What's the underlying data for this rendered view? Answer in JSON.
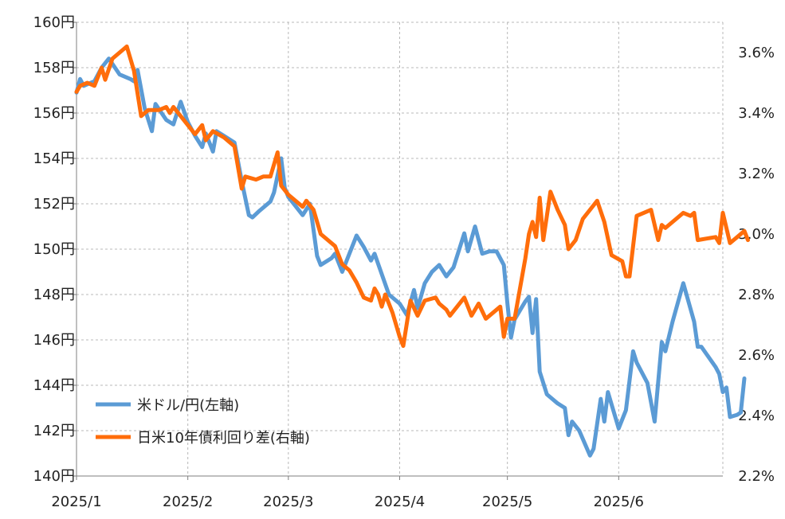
{
  "chart_data": {
    "type": "line",
    "title": "",
    "x_axis": {
      "type": "date",
      "range": [
        "2025-01-01",
        "2025-06-30"
      ],
      "ticks": [
        "2025-01-01",
        "2025-02-01",
        "2025-03-01",
        "2025-04-01",
        "2025-05-01",
        "2025-06-01"
      ],
      "tick_labels": [
        "2025/1",
        "2025/2",
        "2025/3",
        "2025/4",
        "2025/5",
        "2025/6"
      ]
    },
    "y_left": {
      "range": [
        140,
        160
      ],
      "ticks": [
        140,
        142,
        144,
        146,
        148,
        150,
        152,
        154,
        156,
        158,
        160
      ],
      "tick_labels": [
        "140円",
        "142円",
        "144円",
        "146円",
        "148円",
        "150円",
        "152円",
        "154円",
        "156円",
        "158円",
        "160円"
      ]
    },
    "y_right": {
      "range": [
        2.2,
        3.7
      ],
      "ticks": [
        2.2,
        2.4,
        2.6,
        2.8,
        3.0,
        3.2,
        3.4,
        3.6
      ],
      "tick_labels": [
        "2.2%",
        "2.4%",
        "2.6%",
        "2.8%",
        "3.0%",
        "3.2%",
        "3.4%",
        "3.6%"
      ]
    },
    "grid": {
      "vertical": true,
      "horizontal": true,
      "style": "dashed"
    },
    "legend": {
      "position": "bottom-left",
      "entries": [
        {
          "label": "米ドル/円(左軸)",
          "color": "#5b9bd5"
        },
        {
          "label": "日米10年債利回り差(右軸)",
          "color": "#ff6d0a"
        }
      ]
    },
    "series": [
      {
        "name": "米ドル/円(左軸)",
        "axis": "left",
        "color": "#5b9bd5",
        "points": [
          [
            "2025-01-01",
            156.9
          ],
          [
            "2025-01-02",
            157.5
          ],
          [
            "2025-01-03",
            157.2
          ],
          [
            "2025-01-06",
            157.4
          ],
          [
            "2025-01-08",
            158.0
          ],
          [
            "2025-01-10",
            158.4
          ],
          [
            "2025-01-13",
            157.7
          ],
          [
            "2025-01-16",
            157.5
          ],
          [
            "2025-01-17",
            157.4
          ],
          [
            "2025-01-18",
            157.9
          ],
          [
            "2025-01-20",
            156.2
          ],
          [
            "2025-01-22",
            155.2
          ],
          [
            "2025-01-23",
            156.4
          ],
          [
            "2025-01-26",
            155.7
          ],
          [
            "2025-01-28",
            155.5
          ],
          [
            "2025-01-30",
            156.5
          ],
          [
            "2025-02-01",
            155.6
          ],
          [
            "2025-02-03",
            155.0
          ],
          [
            "2025-02-05",
            154.5
          ],
          [
            "2025-02-06",
            155.1
          ],
          [
            "2025-02-08",
            154.3
          ],
          [
            "2025-02-09",
            155.2
          ],
          [
            "2025-02-11",
            155.0
          ],
          [
            "2025-02-14",
            154.7
          ],
          [
            "2025-02-16",
            153.0
          ],
          [
            "2025-02-18",
            151.5
          ],
          [
            "2025-02-19",
            151.4
          ],
          [
            "2025-02-21",
            151.7
          ],
          [
            "2025-02-24",
            152.1
          ],
          [
            "2025-02-25",
            152.5
          ],
          [
            "2025-02-27",
            154.0
          ],
          [
            "2025-02-28",
            152.7
          ],
          [
            "2025-03-01",
            152.3
          ],
          [
            "2025-03-03",
            151.9
          ],
          [
            "2025-03-05",
            151.5
          ],
          [
            "2025-03-07",
            152.0
          ],
          [
            "2025-03-09",
            149.7
          ],
          [
            "2025-03-10",
            149.3
          ],
          [
            "2025-03-13",
            149.6
          ],
          [
            "2025-03-14",
            149.8
          ],
          [
            "2025-03-16",
            149.0
          ],
          [
            "2025-03-18",
            149.8
          ],
          [
            "2025-03-20",
            150.6
          ],
          [
            "2025-03-22",
            150.1
          ],
          [
            "2025-03-24",
            149.5
          ],
          [
            "2025-03-25",
            149.8
          ],
          [
            "2025-03-27",
            148.9
          ],
          [
            "2025-03-29",
            148.0
          ],
          [
            "2025-04-01",
            147.6
          ],
          [
            "2025-04-03",
            147.1
          ],
          [
            "2025-04-05",
            148.2
          ],
          [
            "2025-04-06",
            147.4
          ],
          [
            "2025-04-08",
            148.5
          ],
          [
            "2025-04-10",
            149.0
          ],
          [
            "2025-04-12",
            149.3
          ],
          [
            "2025-04-14",
            148.8
          ],
          [
            "2025-04-16",
            149.2
          ],
          [
            "2025-04-19",
            150.7
          ],
          [
            "2025-04-20",
            149.9
          ],
          [
            "2025-04-22",
            151.0
          ],
          [
            "2025-04-24",
            149.8
          ],
          [
            "2025-04-26",
            149.9
          ],
          [
            "2025-04-28",
            149.9
          ],
          [
            "2025-04-30",
            149.3
          ],
          [
            "2025-05-01",
            147.6
          ],
          [
            "2025-05-02",
            146.1
          ],
          [
            "2025-05-03",
            146.9
          ],
          [
            "2025-05-06",
            147.7
          ],
          [
            "2025-05-07",
            147.9
          ],
          [
            "2025-05-08",
            146.3
          ],
          [
            "2025-05-09",
            147.8
          ],
          [
            "2025-05-10",
            144.6
          ],
          [
            "2025-05-12",
            143.6
          ],
          [
            "2025-05-15",
            143.2
          ],
          [
            "2025-05-17",
            143.0
          ],
          [
            "2025-05-18",
            141.8
          ],
          [
            "2025-05-19",
            142.4
          ],
          [
            "2025-05-21",
            142.0
          ],
          [
            "2025-05-24",
            140.9
          ],
          [
            "2025-05-25",
            141.2
          ],
          [
            "2025-05-27",
            143.4
          ],
          [
            "2025-05-28",
            142.4
          ],
          [
            "2025-05-29",
            143.7
          ],
          [
            "2025-06-01",
            142.1
          ],
          [
            "2025-06-03",
            142.9
          ],
          [
            "2025-06-05",
            145.5
          ],
          [
            "2025-06-06",
            145.0
          ],
          [
            "2025-06-09",
            144.1
          ],
          [
            "2025-06-11",
            142.4
          ],
          [
            "2025-06-13",
            145.9
          ],
          [
            "2025-06-14",
            145.5
          ],
          [
            "2025-06-16",
            146.8
          ],
          [
            "2025-06-19",
            148.5
          ],
          [
            "2025-06-22",
            146.8
          ],
          [
            "2025-06-23",
            145.7
          ],
          [
            "2025-06-24",
            145.7
          ],
          [
            "2025-06-28",
            144.8
          ],
          [
            "2025-06-29",
            144.5
          ],
          [
            "2025-06-30",
            143.7
          ],
          [
            "2025-07-01",
            143.9
          ],
          [
            "2025-07-02",
            142.6
          ],
          [
            "2025-07-04",
            142.7
          ],
          [
            "2025-07-05",
            142.8
          ],
          [
            "2025-07-06",
            144.3
          ]
        ]
      },
      {
        "name": "日米10年債利回り差(右軸)",
        "axis": "right",
        "color": "#ff6d0a",
        "points": [
          [
            "2025-01-01",
            3.47
          ],
          [
            "2025-01-02",
            3.49
          ],
          [
            "2025-01-04",
            3.5
          ],
          [
            "2025-01-06",
            3.49
          ],
          [
            "2025-01-08",
            3.55
          ],
          [
            "2025-01-09",
            3.51
          ],
          [
            "2025-01-11",
            3.58
          ],
          [
            "2025-01-15",
            3.62
          ],
          [
            "2025-01-17",
            3.54
          ],
          [
            "2025-01-19",
            3.39
          ],
          [
            "2025-01-21",
            3.41
          ],
          [
            "2025-01-24",
            3.41
          ],
          [
            "2025-01-26",
            3.42
          ],
          [
            "2025-01-27",
            3.4
          ],
          [
            "2025-01-28",
            3.42
          ],
          [
            "2025-01-30",
            3.39
          ],
          [
            "2025-02-01",
            3.36
          ],
          [
            "2025-02-03",
            3.33
          ],
          [
            "2025-02-05",
            3.36
          ],
          [
            "2025-02-06",
            3.31
          ],
          [
            "2025-02-08",
            3.34
          ],
          [
            "2025-02-11",
            3.32
          ],
          [
            "2025-02-14",
            3.29
          ],
          [
            "2025-02-16",
            3.15
          ],
          [
            "2025-02-17",
            3.19
          ],
          [
            "2025-02-20",
            3.18
          ],
          [
            "2025-02-22",
            3.19
          ],
          [
            "2025-02-24",
            3.19
          ],
          [
            "2025-02-26",
            3.27
          ],
          [
            "2025-02-27",
            3.16
          ],
          [
            "2025-03-01",
            3.13
          ],
          [
            "2025-03-05",
            3.09
          ],
          [
            "2025-03-06",
            3.11
          ],
          [
            "2025-03-08",
            3.08
          ],
          [
            "2025-03-10",
            3.0
          ],
          [
            "2025-03-14",
            2.96
          ],
          [
            "2025-03-16",
            2.9
          ],
          [
            "2025-03-18",
            2.88
          ],
          [
            "2025-03-20",
            2.84
          ],
          [
            "2025-03-22",
            2.79
          ],
          [
            "2025-03-24",
            2.78
          ],
          [
            "2025-03-25",
            2.82
          ],
          [
            "2025-03-26",
            2.8
          ],
          [
            "2025-03-27",
            2.76
          ],
          [
            "2025-03-28",
            2.8
          ],
          [
            "2025-03-30",
            2.74
          ],
          [
            "2025-04-01",
            2.66
          ],
          [
            "2025-04-02",
            2.63
          ],
          [
            "2025-04-04",
            2.78
          ],
          [
            "2025-04-06",
            2.73
          ],
          [
            "2025-04-08",
            2.78
          ],
          [
            "2025-04-11",
            2.79
          ],
          [
            "2025-04-12",
            2.77
          ],
          [
            "2025-04-14",
            2.75
          ],
          [
            "2025-04-15",
            2.73
          ],
          [
            "2025-04-17",
            2.76
          ],
          [
            "2025-04-19",
            2.79
          ],
          [
            "2025-04-21",
            2.73
          ],
          [
            "2025-04-23",
            2.77
          ],
          [
            "2025-04-25",
            2.72
          ],
          [
            "2025-04-29",
            2.76
          ],
          [
            "2025-04-30",
            2.66
          ],
          [
            "2025-05-01",
            2.72
          ],
          [
            "2025-05-03",
            2.72
          ],
          [
            "2025-05-06",
            2.92
          ],
          [
            "2025-05-07",
            3.0
          ],
          [
            "2025-05-08",
            3.04
          ],
          [
            "2025-05-09",
            2.99
          ],
          [
            "2025-05-10",
            3.12
          ],
          [
            "2025-05-11",
            2.98
          ],
          [
            "2025-05-13",
            3.14
          ],
          [
            "2025-05-15",
            3.08
          ],
          [
            "2025-05-17",
            3.03
          ],
          [
            "2025-05-18",
            2.95
          ],
          [
            "2025-05-20",
            2.98
          ],
          [
            "2025-05-22",
            3.05
          ],
          [
            "2025-05-26",
            3.11
          ],
          [
            "2025-05-28",
            3.04
          ],
          [
            "2025-05-30",
            2.93
          ],
          [
            "2025-06-02",
            2.91
          ],
          [
            "2025-06-03",
            2.86
          ],
          [
            "2025-06-04",
            2.86
          ],
          [
            "2025-06-06",
            3.06
          ],
          [
            "2025-06-10",
            3.08
          ],
          [
            "2025-06-12",
            2.98
          ],
          [
            "2025-06-13",
            3.03
          ],
          [
            "2025-06-14",
            3.02
          ],
          [
            "2025-06-17",
            3.05
          ],
          [
            "2025-06-19",
            3.07
          ],
          [
            "2025-06-21",
            3.06
          ],
          [
            "2025-06-22",
            3.07
          ],
          [
            "2025-06-23",
            2.98
          ],
          [
            "2025-06-28",
            2.99
          ],
          [
            "2025-06-29",
            2.97
          ],
          [
            "2025-06-30",
            3.07
          ],
          [
            "2025-07-02",
            2.97
          ],
          [
            "2025-07-04",
            2.99
          ],
          [
            "2025-07-06",
            3.01
          ],
          [
            "2025-07-07",
            2.98
          ]
        ]
      }
    ]
  }
}
